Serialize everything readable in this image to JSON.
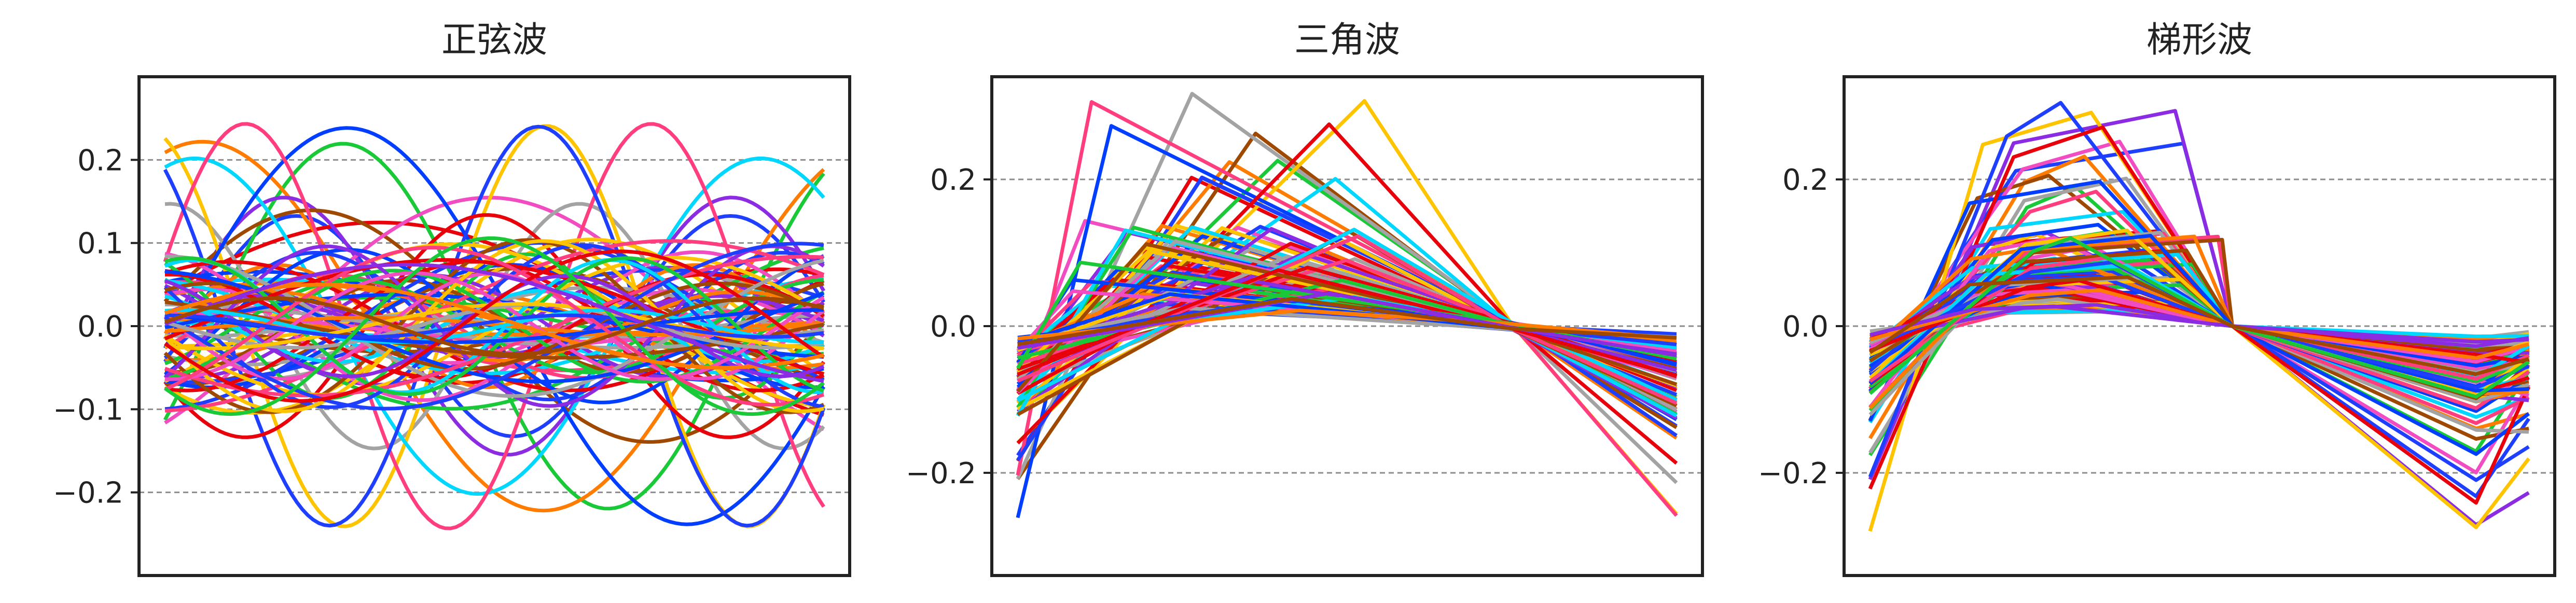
{
  "chart_data": [
    {
      "type": "line",
      "title": "正弦波",
      "xlabel": "",
      "ylabel": "",
      "x_range": [
        0,
        1
      ],
      "ylim": [
        -0.3,
        0.3
      ],
      "yticks": [
        {
          "value": 0.2,
          "label": "0.2"
        },
        {
          "value": 0.1,
          "label": "0.1"
        },
        {
          "value": 0.0,
          "label": "0.0"
        },
        {
          "value": -0.1,
          "label": "−0.1"
        },
        {
          "value": -0.2,
          "label": "−0.2"
        }
      ],
      "grid": "horizontal dashed",
      "series_count": 90,
      "shape": "sine"
    },
    {
      "type": "line",
      "title": "三角波",
      "xlabel": "",
      "ylabel": "",
      "x_range": [
        0,
        1
      ],
      "ylim": [
        -0.34,
        0.34
      ],
      "yticks": [
        {
          "value": 0.2,
          "label": "0.2"
        },
        {
          "value": 0.0,
          "label": "0.0"
        },
        {
          "value": -0.2,
          "label": "−0.2"
        }
      ],
      "grid": "horizontal dashed",
      "series_count": 90,
      "shape": "triangle"
    },
    {
      "type": "line",
      "title": "梯形波",
      "xlabel": "",
      "ylabel": "",
      "x_range": [
        0,
        1
      ],
      "ylim": [
        -0.34,
        0.34
      ],
      "yticks": [
        {
          "value": 0.2,
          "label": "0.2"
        },
        {
          "value": 0.0,
          "label": "0.0"
        },
        {
          "value": -0.2,
          "label": "−0.2"
        }
      ],
      "grid": "horizontal dashed",
      "series_count": 90,
      "shape": "trapezoid"
    }
  ],
  "palette": [
    "#1f3fff",
    "#e8000b",
    "#1ac938",
    "#ff7c00",
    "#8b2be2",
    "#9f4800",
    "#f14cc1",
    "#a3a3a3",
    "#ffc400",
    "#00d7ff",
    "#023eff",
    "#ff3d7f"
  ],
  "gridline_color": "#8c8c8c",
  "axes_color": "#222222"
}
